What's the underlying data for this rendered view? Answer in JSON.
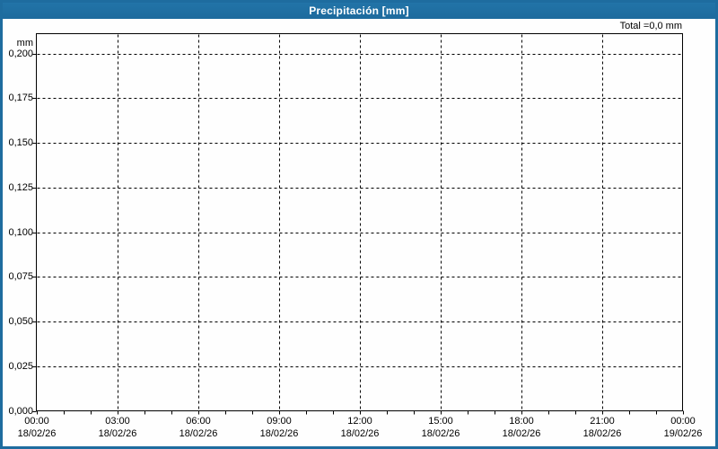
{
  "window": {
    "title": "Precipitación [mm]",
    "titlebar_color": "#1E6C9F",
    "border_color": "#1E6C9F",
    "background": "#FEFEFE"
  },
  "chart_data": {
    "type": "bar",
    "title": "Precipitación [mm]",
    "subtitle": "",
    "total_label": "Total =0,0 mm",
    "ylabel": "mm",
    "xlabel": "",
    "grid": {
      "enabled": true,
      "style": "dashed",
      "color": "#000000"
    },
    "legend_position": "none",
    "x": {
      "range_hours": [
        0,
        24
      ],
      "major_tick_interval_hours": 3,
      "minor_tick_interval_hours": 1,
      "tick_labels": [
        {
          "time": "00:00",
          "date": "18/02/26"
        },
        {
          "time": "03:00",
          "date": "18/02/26"
        },
        {
          "time": "06:00",
          "date": "18/02/26"
        },
        {
          "time": "09:00",
          "date": "18/02/26"
        },
        {
          "time": "12:00",
          "date": "18/02/26"
        },
        {
          "time": "15:00",
          "date": "18/02/26"
        },
        {
          "time": "18:00",
          "date": "18/02/26"
        },
        {
          "time": "21:00",
          "date": "18/02/26"
        },
        {
          "time": "00:00",
          "date": "19/02/26"
        }
      ]
    },
    "y": {
      "range": [
        0,
        0.2111
      ],
      "tick_values": [
        0,
        0.025,
        0.05,
        0.075,
        0.1,
        0.125,
        0.15,
        0.175,
        0.2
      ],
      "tick_labels": [
        "0,000",
        "0,025",
        "0,050",
        "0,075",
        "0,100",
        "0,125",
        "0,150",
        "0,175",
        "0,200"
      ]
    },
    "series": [
      {
        "name": "Precipitación",
        "unit": "mm",
        "values": [],
        "total_display": "0,0"
      }
    ]
  }
}
